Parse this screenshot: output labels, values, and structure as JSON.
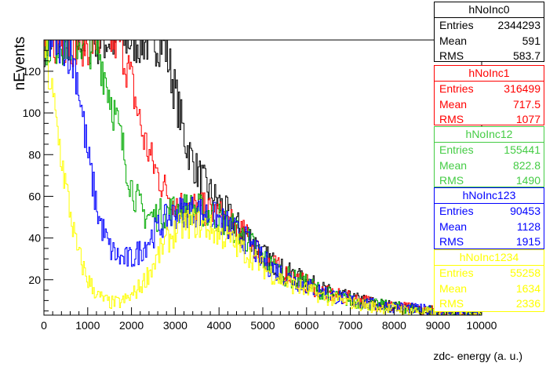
{
  "chart_data": {
    "type": "line",
    "xlabel": "zdc- energy (a. u.)",
    "ylabel": "nEvents",
    "xlim": [
      0,
      10000
    ],
    "ylim": [
      3,
      135
    ],
    "x_ticks": [
      "0",
      "1000",
      "2000",
      "3000",
      "4000",
      "5000",
      "6000",
      "7000",
      "8000",
      "9000",
      "10000"
    ],
    "y_ticks": [
      "20",
      "40",
      "60",
      "80",
      "100",
      "120"
    ],
    "x": [
      0,
      250,
      500,
      750,
      1000,
      1250,
      1500,
      1750,
      2000,
      2250,
      2500,
      2750,
      3000,
      3250,
      3500,
      3750,
      4000,
      4250,
      4500,
      4750,
      5000,
      5500,
      6000,
      6500,
      7000,
      7500,
      8000,
      8500,
      9000,
      9500,
      10000
    ],
    "series": [
      {
        "name": "hNoInc0",
        "color": "#000000",
        "values": [
          135,
          135,
          135,
          135,
          135,
          135,
          135,
          135,
          135,
          135,
          135,
          135,
          110,
          85,
          72,
          63,
          57,
          50,
          44,
          40,
          32,
          24,
          19,
          14,
          11,
          9,
          7,
          6,
          5,
          4,
          4
        ]
      },
      {
        "name": "hNoInc1",
        "color": "#ff0000",
        "values": [
          135,
          135,
          135,
          135,
          135,
          135,
          135,
          135,
          115,
          90,
          75,
          64,
          57,
          55,
          55,
          53,
          51,
          47,
          43,
          38,
          31,
          23,
          18,
          13,
          11,
          9,
          7,
          6,
          5,
          4,
          4
        ]
      },
      {
        "name": "hNoInc12",
        "color": "#00aa00",
        "values": [
          135,
          135,
          135,
          135,
          135,
          130,
          110,
          88,
          65,
          52,
          50,
          52,
          54,
          54,
          54,
          52,
          50,
          46,
          42,
          37,
          30,
          22,
          18,
          13,
          10,
          8,
          7,
          6,
          5,
          4,
          4
        ]
      },
      {
        "name": "hNoInc123",
        "color": "#0000ff",
        "values": [
          135,
          135,
          135,
          120,
          80,
          50,
          35,
          30,
          30,
          35,
          42,
          48,
          52,
          53,
          53,
          51,
          49,
          45,
          41,
          36,
          29,
          22,
          17,
          13,
          10,
          8,
          7,
          6,
          5,
          4,
          4
        ]
      },
      {
        "name": "hNoInc1234",
        "color": "#ffff00",
        "values": [
          135,
          100,
          65,
          35,
          20,
          12,
          9,
          9,
          12,
          18,
          27,
          37,
          43,
          47,
          47,
          45,
          42,
          39,
          35,
          31,
          26,
          19,
          15,
          11,
          9,
          7,
          6,
          5,
          4,
          4,
          4
        ]
      }
    ]
  },
  "statboxes": [
    {
      "name": "hNoInc0",
      "color": "#000000",
      "entries": "2344293",
      "mean": "591",
      "rms": "583.7"
    },
    {
      "name": "hNoInc1",
      "color": "#ff0000",
      "entries": "316499",
      "mean": "717.5",
      "rms": "1077"
    },
    {
      "name": "hNoInc12",
      "color": "#44cc44",
      "entries": "155441",
      "mean": "822.8",
      "rms": "1490"
    },
    {
      "name": "hNoInc123",
      "color": "#0000ff",
      "entries": "90453",
      "mean": "1128",
      "rms": "1915"
    },
    {
      "name": "hNoInc1234",
      "color": "#ffff00",
      "entries": "55258",
      "mean": "1634",
      "rms": "2336"
    }
  ],
  "stat_labels": {
    "entries": "Entries",
    "mean": "Mean",
    "rms": "RMS"
  }
}
